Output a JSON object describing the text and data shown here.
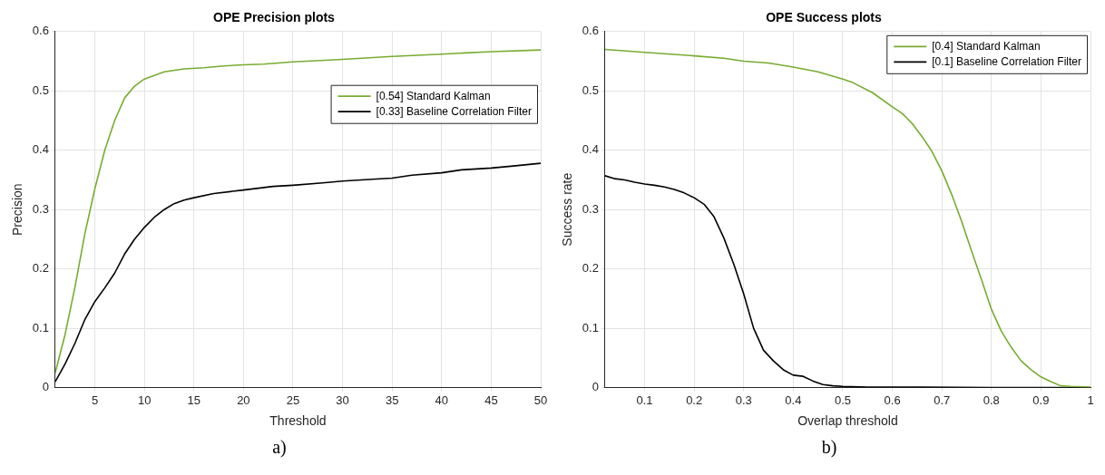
{
  "chart_data": [
    {
      "type": "line",
      "title": "OPE Precision plots",
      "xlabel": "Threshold",
      "ylabel": "Precision",
      "xlim": [
        1,
        50
      ],
      "xticks": [
        5,
        10,
        15,
        20,
        25,
        30,
        35,
        40,
        45,
        50
      ],
      "ylim": [
        0,
        0.6
      ],
      "yticks": [
        0,
        0.1,
        0.2,
        0.3,
        0.4,
        0.5,
        0.6
      ],
      "grid": true,
      "legend": "right",
      "marker": "none",
      "line_style": "solid",
      "annotations": [
        "a)"
      ],
      "series": [
        {
          "name": "[0.54] Standard Kalman",
          "color": "#77ac30",
          "x": [
            1,
            2,
            3,
            4,
            5,
            6,
            7,
            8,
            9,
            10,
            12,
            14,
            16,
            18,
            20,
            22,
            25,
            30,
            35,
            40,
            45,
            50
          ],
          "values": [
            0.025,
            0.09,
            0.17,
            0.26,
            0.335,
            0.4,
            0.45,
            0.488,
            0.508,
            0.52,
            0.532,
            0.537,
            0.539,
            0.542,
            0.544,
            0.545,
            0.549,
            0.553,
            0.558,
            0.562,
            0.566,
            0.569
          ]
        },
        {
          "name": "[0.33] Baseline Correlation Filter",
          "color": "#000000",
          "x": [
            1,
            2,
            3,
            4,
            5,
            6,
            7,
            8,
            9,
            10,
            11,
            12,
            13,
            14,
            15,
            17,
            20,
            23,
            25,
            28,
            30,
            33,
            35,
            37,
            40,
            42,
            45,
            47,
            50
          ],
          "values": [
            0.01,
            0.04,
            0.075,
            0.115,
            0.145,
            0.168,
            0.193,
            0.225,
            0.25,
            0.27,
            0.287,
            0.3,
            0.31,
            0.316,
            0.32,
            0.327,
            0.333,
            0.339,
            0.341,
            0.345,
            0.348,
            0.351,
            0.353,
            0.358,
            0.362,
            0.367,
            0.37,
            0.373,
            0.378
          ]
        }
      ]
    },
    {
      "type": "line",
      "title": "OPE Success plots",
      "xlabel": "Overlap threshold",
      "ylabel": "Success rate",
      "xlim": [
        0.02,
        1
      ],
      "xticks": [
        0.1,
        0.2,
        0.3,
        0.4,
        0.5,
        0.6,
        0.7,
        0.8,
        0.9,
        1
      ],
      "ylim": [
        0,
        0.6
      ],
      "yticks": [
        0,
        0.1,
        0.2,
        0.3,
        0.4,
        0.5,
        0.6
      ],
      "grid": true,
      "legend": "top right",
      "marker": "none",
      "line_style": "solid",
      "annotations": [
        "b)"
      ],
      "series": [
        {
          "name": "[0.4] Standard Kalman",
          "color": "#77ac30",
          "x": [
            0.02,
            0.1,
            0.2,
            0.26,
            0.3,
            0.35,
            0.4,
            0.45,
            0.5,
            0.52,
            0.56,
            0.6,
            0.62,
            0.64,
            0.66,
            0.68,
            0.7,
            0.72,
            0.74,
            0.76,
            0.78,
            0.8,
            0.82,
            0.84,
            0.86,
            0.88,
            0.9,
            0.92,
            0.94,
            0.96,
            1
          ],
          "values": [
            0.57,
            0.565,
            0.559,
            0.555,
            0.55,
            0.547,
            0.54,
            0.532,
            0.52,
            0.514,
            0.497,
            0.473,
            0.462,
            0.445,
            0.423,
            0.398,
            0.365,
            0.325,
            0.28,
            0.23,
            0.182,
            0.132,
            0.095,
            0.068,
            0.045,
            0.03,
            0.018,
            0.01,
            0.003,
            0.002,
            0.001
          ]
        },
        {
          "name": "[0.1] Baseline Correlation Filter",
          "color": "#000000",
          "x": [
            0.02,
            0.04,
            0.06,
            0.08,
            0.1,
            0.12,
            0.14,
            0.16,
            0.18,
            0.2,
            0.22,
            0.24,
            0.26,
            0.28,
            0.3,
            0.32,
            0.34,
            0.36,
            0.38,
            0.4,
            0.42,
            0.44,
            0.46,
            0.48,
            0.5,
            0.55,
            0.6,
            0.8,
            1
          ],
          "values": [
            0.357,
            0.352,
            0.35,
            0.346,
            0.343,
            0.341,
            0.338,
            0.334,
            0.328,
            0.32,
            0.309,
            0.288,
            0.252,
            0.208,
            0.158,
            0.1,
            0.063,
            0.045,
            0.03,
            0.021,
            0.019,
            0.011,
            0.005,
            0.003,
            0.002,
            0.001,
            0.001,
            0,
            0
          ]
        }
      ]
    }
  ]
}
